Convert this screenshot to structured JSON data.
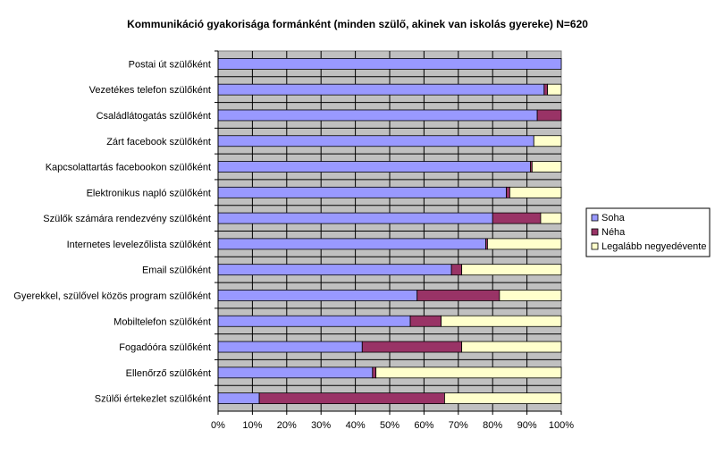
{
  "chart_data": {
    "type": "bar",
    "orientation": "horizontal",
    "stacked": true,
    "normalized": true,
    "title": "Kommunikáció gyakorisága formánként (minden szülő, akinek van iskolás gyereke) N=620",
    "xlabel": "",
    "ylabel": "",
    "xlim": [
      0,
      100
    ],
    "x_ticks": [
      "0%",
      "10%",
      "20%",
      "30%",
      "40%",
      "50%",
      "60%",
      "70%",
      "80%",
      "90%",
      "100%"
    ],
    "grid": true,
    "legend_position": "right",
    "plot_background": "#c0c0c0",
    "categories": [
      "Postai út szülőként",
      "Vezetékes telefon szülőként",
      "Családlátogatás szülőként",
      "Zárt facebook szülőként",
      "Kapcsolattartás facebookon szülőként",
      "Elektronikus napló szülőként",
      "Szülők számára rendezvény szülőként",
      "Internetes levelezőlista szülőként",
      "Email szülőként",
      "Gyerekkel, szülővel közös program szülőként",
      "Mobiltelefon szülőként",
      "Fogadóóra szülőként",
      "Ellenőrző szülőként",
      "Szülői értekezlet szülőként"
    ],
    "series": [
      {
        "name": "Soha",
        "color": "#9999ff",
        "values": [
          100,
          95,
          93,
          92,
          91,
          84,
          80,
          78,
          68,
          58,
          56,
          42,
          45,
          12
        ]
      },
      {
        "name": "Néha",
        "color": "#993366",
        "values": [
          0,
          1,
          7,
          0,
          0.5,
          1,
          14,
          0.5,
          3,
          24,
          9,
          29,
          1,
          54
        ]
      },
      {
        "name": "Legalább negyedévente",
        "color": "#ffffcc",
        "values": [
          0,
          4,
          0,
          8,
          8.5,
          15,
          6,
          21.5,
          29,
          18,
          35,
          29,
          54,
          34
        ]
      }
    ]
  }
}
